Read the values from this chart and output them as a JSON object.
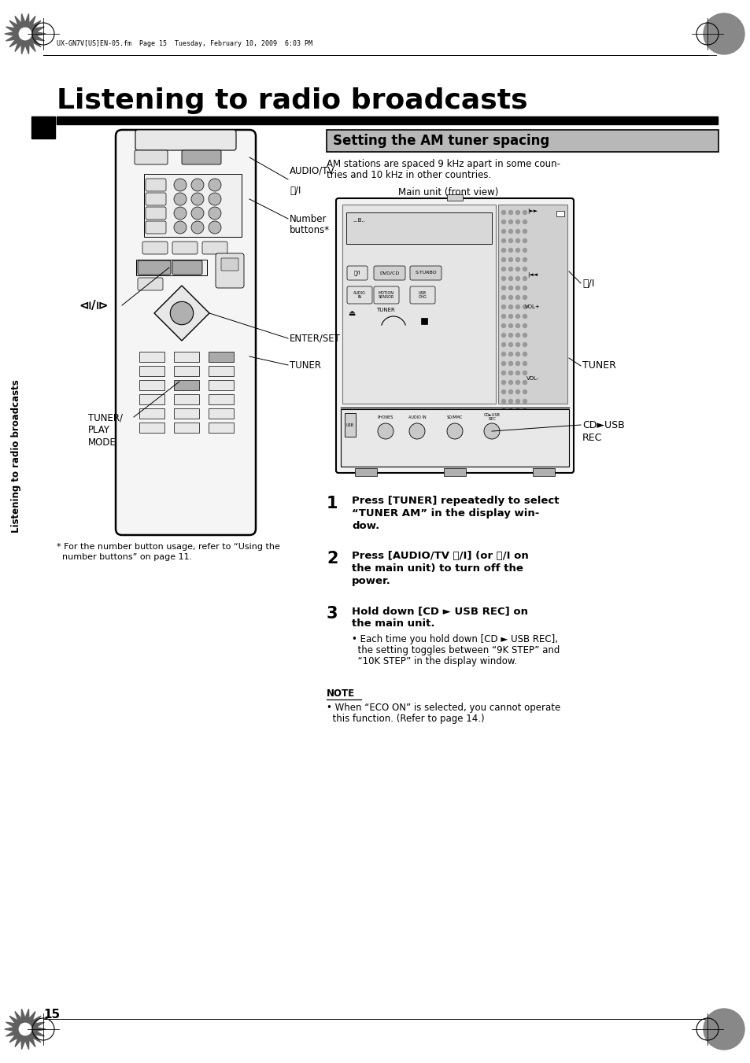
{
  "page_title": "Listening to radio broadcasts",
  "section_title": "Setting the AM tuner spacing",
  "header_text": "UX-GN7V[US]EN-05.fm  Page 15  Tuesday, February 10, 2009  6:03 PM",
  "page_number": "15",
  "sidebar_text": "Listening to radio broadcasts",
  "bg_color": "#ffffff",
  "intro_text_line1": "AM stations are spaced 9 kHz apart in some coun-",
  "intro_text_line2": "tries and 10 kHz in other countries.",
  "main_unit_label": "Main unit (front view)",
  "step1": "Press [TUNER] repeatedly to select",
  "step1b": "“TUNER AM” in the display win-",
  "step1c": "dow.",
  "step2": "Press [AUDIO/TV ⏽/I] (or ⏽/I on",
  "step2b": "the main unit) to turn off the",
  "step2c": "power.",
  "step3": "Hold down [CD ► USB REC] on",
  "step3b": "the main unit.",
  "step3_detail1": "• Each time you hold down [CD ► USB REC],",
  "step3_detail2": "  the setting toggles between “9K STEP” and",
  "step3_detail3": "  “10K STEP” in the display window.",
  "note_label": "NOTE",
  "note_text1": "• When “ECO ON” is selected, you cannot operate",
  "note_text2": "  this function. (Refer to page 14.)",
  "footnote1": "* For the number button usage, refer to “Using the",
  "footnote2": "  number buttons” on page 11.",
  "label_audio_tv": "AUDIO/TV",
  "label_power": "⏽/I",
  "label_number": "Number",
  "label_buttons": "buttons*",
  "label_enter": "ENTER/SET",
  "label_tuner": "TUNER",
  "label_tuner_play": "TUNER/",
  "label_play": "PLAY",
  "label_mode": "MODE",
  "label_power_unit": "⏽/I",
  "label_tuner_unit": "TUNER",
  "label_cd_usb": "CD►USB",
  "label_rec": "REC"
}
